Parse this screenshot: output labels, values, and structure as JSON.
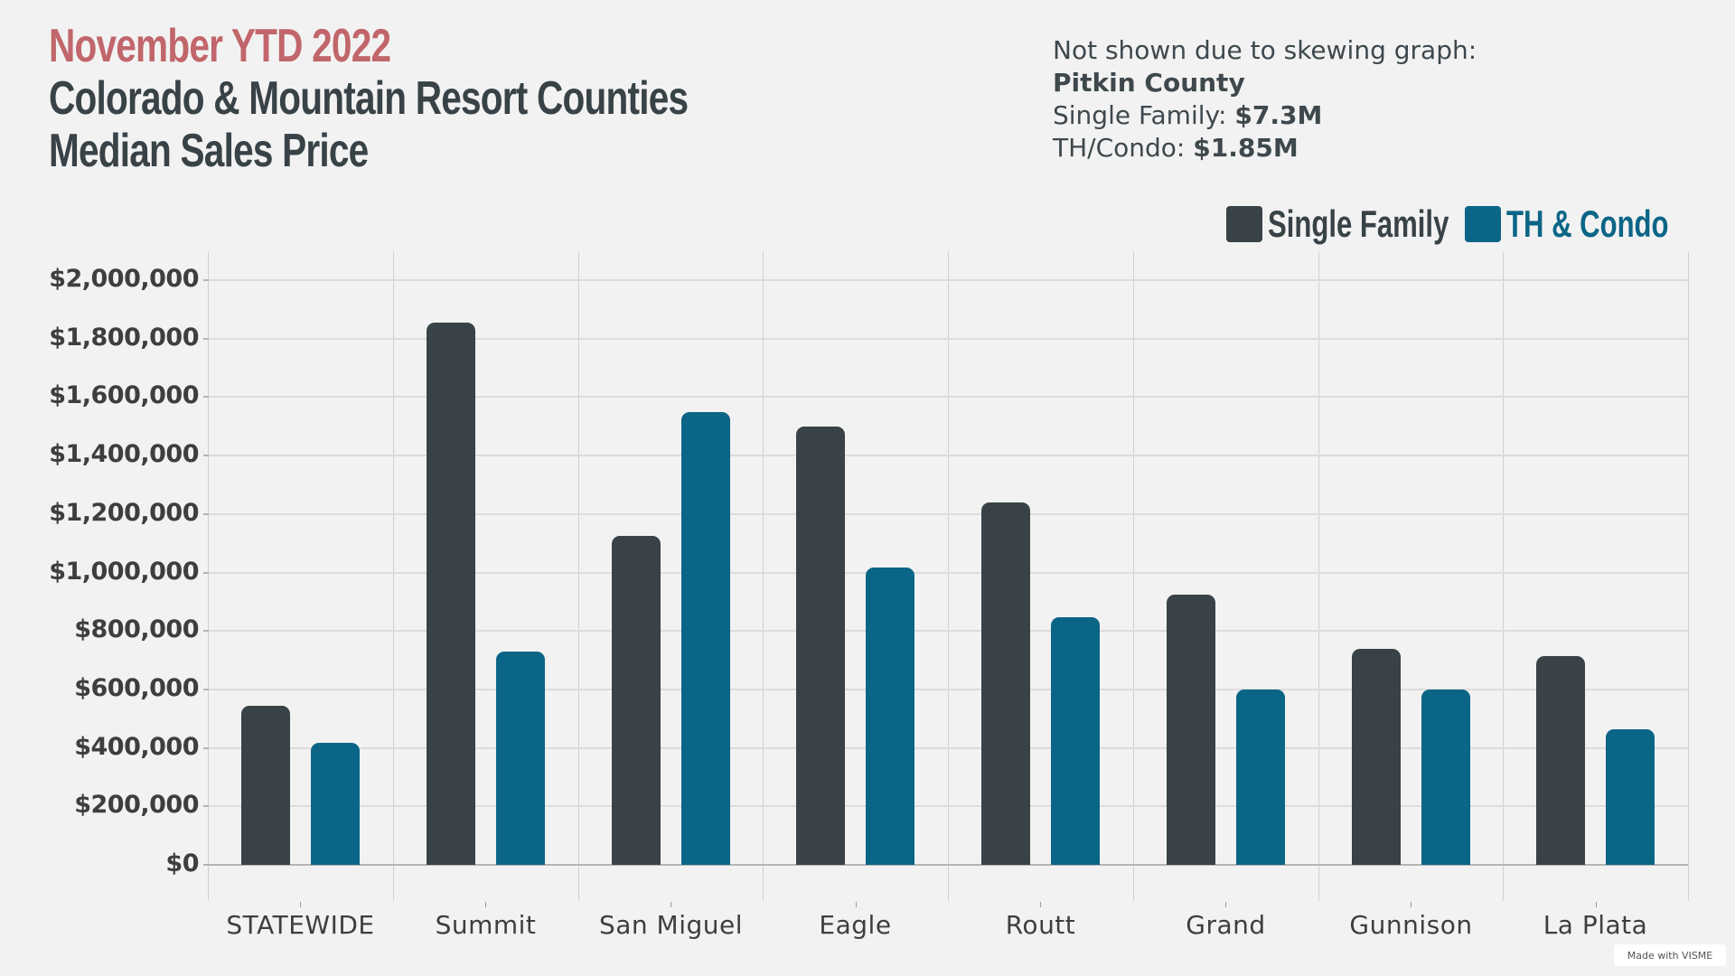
{
  "header": {
    "period": "November YTD 2022",
    "title_line1": "Colorado & Mountain Resort Counties",
    "title_line2": "Median Sales Price"
  },
  "note": {
    "line1": "Not shown due to skewing graph:",
    "county": "Pitkin County",
    "sf_label": "Single Family: ",
    "sf_value": "$7.3M",
    "condo_label": "TH/Condo: ",
    "condo_value": "$1.85M"
  },
  "legend": {
    "items": [
      {
        "label": "Single Family",
        "color": "#384247"
      },
      {
        "label": "TH & Condo",
        "color": "#0b6587"
      }
    ]
  },
  "colors": {
    "single_family": "#384247",
    "condo": "#0b6587",
    "accent": "#c1666b",
    "background": "#f2f2f2"
  },
  "badge": "Made with VISME",
  "chart_data": {
    "type": "bar",
    "title": "Colorado & Mountain Resort Counties Median Sales Price",
    "subtitle": "November YTD 2022",
    "xlabel": "",
    "ylabel": "",
    "ylim": [
      0,
      2000000
    ],
    "yticks": [
      0,
      200000,
      400000,
      600000,
      800000,
      1000000,
      1200000,
      1400000,
      1600000,
      1800000,
      2000000
    ],
    "ytick_labels": [
      "$0",
      "$200,000",
      "$400,000",
      "$600,000",
      "$800,000",
      "$1,000,000",
      "$1,200,000",
      "$1,400,000",
      "$1,600,000",
      "$1,800,000",
      "$2,000,000"
    ],
    "categories": [
      "STATEWIDE",
      "Summit",
      "San Miguel",
      "Eagle",
      "Routt",
      "Grand",
      "Gunnison",
      "La Plata"
    ],
    "series": [
      {
        "name": "Single Family",
        "color": "#384247",
        "values": [
          545000,
          1855000,
          1125000,
          1500000,
          1240000,
          925000,
          739000,
          714000
        ]
      },
      {
        "name": "TH & Condo",
        "color": "#0b6587",
        "values": [
          417000,
          730000,
          1550000,
          1017000,
          847000,
          600000,
          600000,
          464000
        ]
      }
    ],
    "grid": true,
    "legend_position": "top-right",
    "annotation": "Not shown due to skewing graph: Pitkin County — Single Family: $7.3M, TH/Condo: $1.85M"
  }
}
